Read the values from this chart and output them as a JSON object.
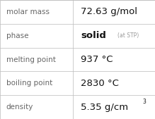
{
  "rows": [
    {
      "label": "molar mass",
      "value": "72.63 g/mol",
      "superscript": null,
      "sub_text": null
    },
    {
      "label": "phase",
      "value": "solid",
      "superscript": null,
      "sub_text": "(at STP)"
    },
    {
      "label": "melting point",
      "value": "937 °C",
      "superscript": null,
      "sub_text": null
    },
    {
      "label": "boiling point",
      "value": "2830 °C",
      "superscript": null,
      "sub_text": null
    },
    {
      "label": "density",
      "value": "5.35 g/cm",
      "superscript": "3",
      "sub_text": null
    }
  ],
  "bg_color": "#ffffff",
  "border_color": "#bbbbbb",
  "label_color": "#666666",
  "value_color": "#111111",
  "sub_text_color": "#999999",
  "col_split": 0.47,
  "label_fontsize": 7.5,
  "value_fontsize": 9.5,
  "sub_fontsize": 5.5,
  "super_fontsize": 5.5
}
